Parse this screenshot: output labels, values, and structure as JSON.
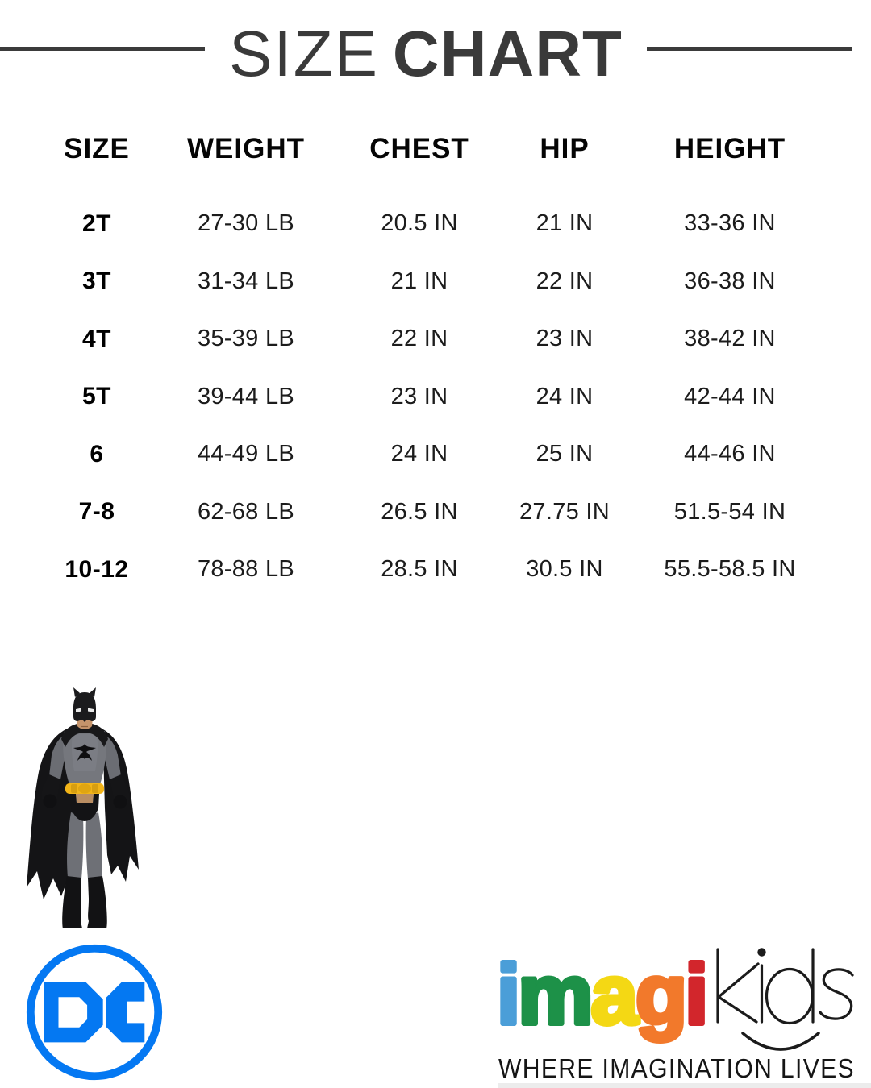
{
  "header": {
    "title_light": "SIZE",
    "title_bold": "CHART",
    "rule_color": "#3b3b3b"
  },
  "chart_data": {
    "type": "table",
    "title": "SIZE CHART",
    "columns": [
      "SIZE",
      "WEIGHT",
      "CHEST",
      "HIP",
      "HEIGHT"
    ],
    "rows": [
      [
        "2T",
        "27-30 LB",
        "20.5 IN",
        "21 IN",
        "33-36 IN"
      ],
      [
        "3T",
        "31-34 LB",
        "21 IN",
        "22 IN",
        "36-38 IN"
      ],
      [
        "4T",
        "35-39 LB",
        "22 IN",
        "23 IN",
        "38-42 IN"
      ],
      [
        "5T",
        "39-44 LB",
        "23 IN",
        "24 IN",
        "42-44 IN"
      ],
      [
        "6",
        "44-49 LB",
        "24 IN",
        "25 IN",
        "44-46 IN"
      ],
      [
        "7-8",
        "62-68 LB",
        "26.5 IN",
        "27.75 IN",
        "51.5-54 IN"
      ],
      [
        "10-12",
        "78-88 LB",
        "28.5 IN",
        "30.5 IN",
        "55.5-58.5 IN"
      ]
    ]
  },
  "footer": {
    "batman_figure_icon": "batman-action-figure",
    "dc_logo": {
      "text": "DC",
      "blue": "#0478F2"
    },
    "imagikids": {
      "imagi_letters": [
        {
          "char": "i",
          "color": "#4B9ED8"
        },
        {
          "char": "m",
          "color": "#1D9148"
        },
        {
          "char": "a",
          "color": "#F4D814"
        },
        {
          "char": "g",
          "color": "#F2792B"
        },
        {
          "char": "i",
          "color": "#D2262C"
        }
      ],
      "kids_text": "kids",
      "tagline": "WHERE IMAGINATION LIVES"
    }
  }
}
